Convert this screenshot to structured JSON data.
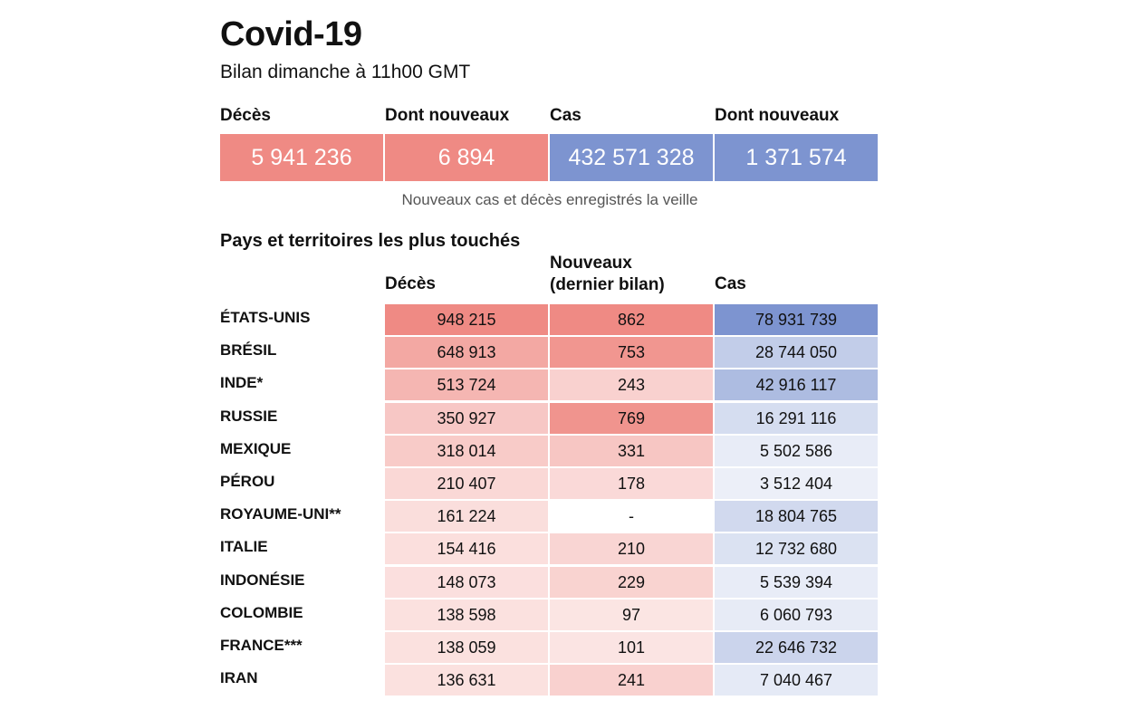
{
  "header": {
    "title": "Covid-19",
    "subtitle": "Bilan dimanche à 11h00 GMT"
  },
  "summary": [
    {
      "label": "Décès",
      "value": "5 941 236",
      "color": "#ef8a84"
    },
    {
      "label": "Dont nouveaux",
      "value": "6 894",
      "color": "#ef8a84"
    },
    {
      "label": "Cas",
      "value": "432 571 328",
      "color": "#7d94d0"
    },
    {
      "label": "Dont nouveaux",
      "value": "1 371 574",
      "color": "#7d94d0"
    }
  ],
  "note": "Nouveaux cas et décès enregistrés la veille",
  "section_title": "Pays et territoires les plus touchés",
  "colors": {
    "deaths_scale": "#ef8a84",
    "cases_scale": "#7d94d0",
    "empty_cell": "#ffffff"
  },
  "chart_data": {
    "type": "table",
    "columns": [
      "Décès",
      "Nouveaux (dernier bilan)",
      "Cas"
    ],
    "column_header_lines": {
      "deaths": [
        "Décès"
      ],
      "new": [
        "Nouveaux",
        "(dernier bilan)"
      ],
      "cases": [
        "Cas"
      ]
    },
    "rows": [
      {
        "country": "ÉTATS-UNIS",
        "deaths": 948215,
        "new": 862,
        "cases": 78931739,
        "deaths_text": "948 215",
        "new_text": "862",
        "cases_text": "78 931 739"
      },
      {
        "country": "BRÉSIL",
        "deaths": 648913,
        "new": 753,
        "cases": 28744050,
        "deaths_text": "648 913",
        "new_text": "753",
        "cases_text": "28 744 050"
      },
      {
        "country": "INDE*",
        "deaths": 513724,
        "new": 243,
        "cases": 42916117,
        "deaths_text": "513 724",
        "new_text": "243",
        "cases_text": "42 916 117"
      },
      {
        "country": "RUSSIE",
        "deaths": 350927,
        "new": 769,
        "cases": 16291116,
        "deaths_text": "350 927",
        "new_text": "769",
        "cases_text": "16 291 116"
      },
      {
        "country": "MEXIQUE",
        "deaths": 318014,
        "new": 331,
        "cases": 5502586,
        "deaths_text": "318 014",
        "new_text": "331",
        "cases_text": "5 502 586"
      },
      {
        "country": "PÉROU",
        "deaths": 210407,
        "new": 178,
        "cases": 3512404,
        "deaths_text": "210 407",
        "new_text": "178",
        "cases_text": "3 512 404"
      },
      {
        "country": "ROYAUME-UNI**",
        "deaths": 161224,
        "new": null,
        "cases": 18804765,
        "deaths_text": "161 224",
        "new_text": "-",
        "cases_text": "18 804 765"
      },
      {
        "country": "ITALIE",
        "deaths": 154416,
        "new": 210,
        "cases": 12732680,
        "deaths_text": "154 416",
        "new_text": "210",
        "cases_text": "12 732 680"
      },
      {
        "country": "INDONÉSIE",
        "deaths": 148073,
        "new": 229,
        "cases": 5539394,
        "deaths_text": "148 073",
        "new_text": "229",
        "cases_text": "5 539 394"
      },
      {
        "country": "COLOMBIE",
        "deaths": 138598,
        "new": 97,
        "cases": 6060793,
        "deaths_text": "138 598",
        "new_text": "97",
        "cases_text": "6 060 793"
      },
      {
        "country": "FRANCE***",
        "deaths": 138059,
        "new": 101,
        "cases": 22646732,
        "deaths_text": "138 059",
        "new_text": "101",
        "cases_text": "22 646 732"
      },
      {
        "country": "IRAN",
        "deaths": 136631,
        "new": 241,
        "cases": 7040467,
        "deaths_text": "136 631",
        "new_text": "241",
        "cases_text": "7 040 467"
      }
    ]
  }
}
